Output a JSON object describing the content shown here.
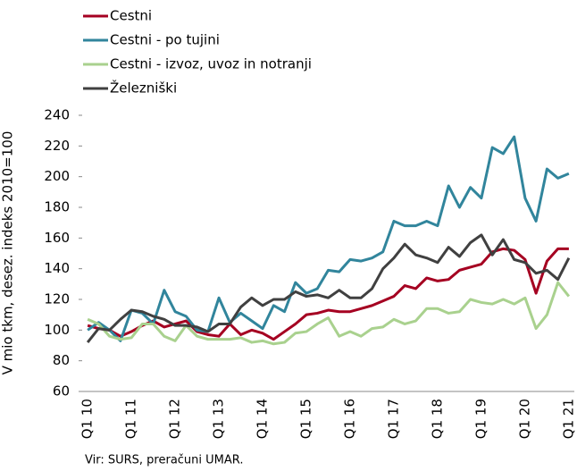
{
  "chart_data": {
    "type": "line",
    "y_label": "V mio tkm, desez. indeks 2010=100",
    "note": "Vir: SURS, preračuni UMAR.",
    "categories": [
      "Q1 10",
      null,
      null,
      null,
      "Q1 11",
      null,
      null,
      null,
      "Q1 12",
      null,
      null,
      null,
      "Q1 13",
      null,
      null,
      null,
      "Q1 14",
      null,
      null,
      null,
      "Q1 15",
      null,
      null,
      null,
      "Q1 16",
      null,
      null,
      null,
      "Q1 17",
      null,
      null,
      null,
      "Q1 18",
      null,
      null,
      null,
      "Q1 19",
      null,
      null,
      null,
      "Q1 20",
      null,
      null,
      null,
      "Q1 21"
    ],
    "series": [
      {
        "name": "Cestni",
        "color": "#a50021",
        "values": [
          103,
          101,
          100,
          96,
          99,
          103,
          106,
          102,
          104,
          106,
          99,
          97,
          96,
          104,
          97,
          100,
          98,
          94,
          99,
          104,
          110,
          111,
          113,
          112,
          112,
          114,
          116,
          119,
          122,
          129,
          127,
          134,
          132,
          133,
          139,
          141,
          143,
          151,
          153,
          152,
          146,
          124,
          145,
          153,
          153
        ]
      },
      {
        "name": "Cestni - po tujini",
        "color": "#31859c",
        "values": [
          100,
          105,
          100,
          93,
          113,
          111,
          104,
          126,
          112,
          109,
          100,
          99,
          121,
          105,
          111,
          106,
          101,
          116,
          112,
          131,
          124,
          127,
          139,
          138,
          146,
          145,
          147,
          151,
          171,
          168,
          168,
          171,
          168,
          194,
          180,
          193,
          186,
          219,
          215,
          226,
          186,
          171,
          205,
          199,
          202
        ]
      },
      {
        "name": "Cestni - izvoz, uvoz in notranji",
        "color": "#a9d18e",
        "values": [
          107,
          104,
          96,
          94,
          95,
          104,
          104,
          96,
          93,
          103,
          96,
          94,
          94,
          94,
          95,
          92,
          93,
          91,
          92,
          98,
          99,
          104,
          108,
          96,
          99,
          96,
          101,
          102,
          107,
          104,
          106,
          114,
          114,
          111,
          112,
          120,
          118,
          117,
          120,
          117,
          121,
          101,
          110,
          131,
          122
        ]
      },
      {
        "name": "Železniški",
        "color": "#404040",
        "values": [
          92,
          101,
          100,
          107,
          113,
          112,
          109,
          107,
          103,
          103,
          102,
          99,
          104,
          104,
          115,
          121,
          116,
          120,
          120,
          125,
          122,
          123,
          121,
          126,
          121,
          121,
          127,
          140,
          147,
          156,
          149,
          147,
          144,
          154,
          148,
          157,
          162,
          149,
          159,
          146,
          144,
          137,
          139,
          133,
          147
        ]
      }
    ],
    "ylim": [
      60,
      240
    ],
    "yticks": [
      60,
      80,
      100,
      120,
      140,
      160,
      180,
      200,
      220,
      240
    ]
  }
}
